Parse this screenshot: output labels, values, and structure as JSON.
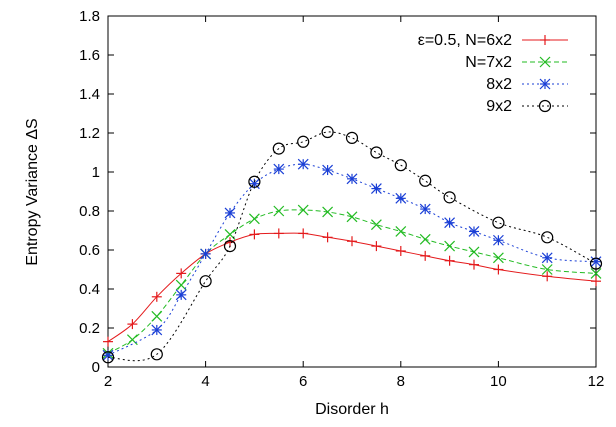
{
  "chart_data": {
    "type": "line",
    "xlabel": "Disorder h",
    "ylabel": "Entropy Variance ΔS",
    "xlim": [
      2,
      12
    ],
    "ylim": [
      0,
      1.8
    ],
    "xticks": [
      2,
      4,
      6,
      8,
      10,
      12
    ],
    "yticks": [
      0,
      0.2,
      0.4,
      0.6,
      0.8,
      1,
      1.2,
      1.4,
      1.6,
      1.8
    ],
    "xtick_labels": [
      "2",
      "4",
      "6",
      "8",
      "10",
      "12"
    ],
    "ytick_labels": [
      "0",
      "0.2",
      "0.4",
      "0.6",
      "0.8",
      "1",
      "1.2",
      "1.4",
      "1.6",
      "1.8"
    ],
    "grid": false,
    "legend_position": "top-right",
    "series": [
      {
        "name": "ε=0.5, N=6x2",
        "color": "#e41a1c",
        "line_style": "solid",
        "marker": "plus",
        "x": [
          2,
          2.5,
          3,
          3.5,
          4,
          4.5,
          5,
          5.5,
          6,
          6.5,
          7,
          7.5,
          8,
          8.5,
          9,
          9.5,
          10,
          11,
          12
        ],
        "y": [
          0.13,
          0.22,
          0.36,
          0.48,
          0.58,
          0.64,
          0.68,
          0.685,
          0.685,
          0.665,
          0.645,
          0.62,
          0.595,
          0.57,
          0.545,
          0.525,
          0.5,
          0.465,
          0.44
        ]
      },
      {
        "name": "N=7x2",
        "color": "#22bb22",
        "line_style": "dashed",
        "marker": "cross",
        "x": [
          2,
          2.5,
          3,
          3.5,
          4,
          4.5,
          5,
          5.5,
          6,
          6.5,
          7,
          7.5,
          8,
          8.5,
          9,
          9.5,
          10,
          11,
          12
        ],
        "y": [
          0.07,
          0.14,
          0.26,
          0.42,
          0.58,
          0.68,
          0.76,
          0.8,
          0.805,
          0.795,
          0.77,
          0.73,
          0.695,
          0.655,
          0.62,
          0.59,
          0.56,
          0.5,
          0.48
        ]
      },
      {
        "name": "8x2",
        "color": "#1a3fd6",
        "line_style": "dotted",
        "marker": "star",
        "x": [
          2,
          3,
          3.5,
          4,
          4.5,
          5,
          5.5,
          6,
          6.5,
          7,
          7.5,
          8,
          8.5,
          9,
          9.5,
          10,
          11,
          12
        ],
        "y": [
          0.06,
          0.19,
          0.37,
          0.58,
          0.79,
          0.94,
          1.015,
          1.04,
          1.01,
          0.965,
          0.915,
          0.865,
          0.81,
          0.74,
          0.695,
          0.65,
          0.56,
          0.54
        ]
      },
      {
        "name": "9x2",
        "color": "#000000",
        "line_style": "dotted",
        "marker": "circle",
        "x": [
          2,
          3,
          4,
          4.5,
          5,
          5.5,
          6,
          6.5,
          7,
          7.5,
          8,
          8.5,
          9,
          10,
          11,
          12
        ],
        "y": [
          0.05,
          0.065,
          0.44,
          0.62,
          0.95,
          1.12,
          1.155,
          1.205,
          1.175,
          1.1,
          1.035,
          0.955,
          0.87,
          0.74,
          0.665,
          0.53
        ]
      }
    ]
  }
}
